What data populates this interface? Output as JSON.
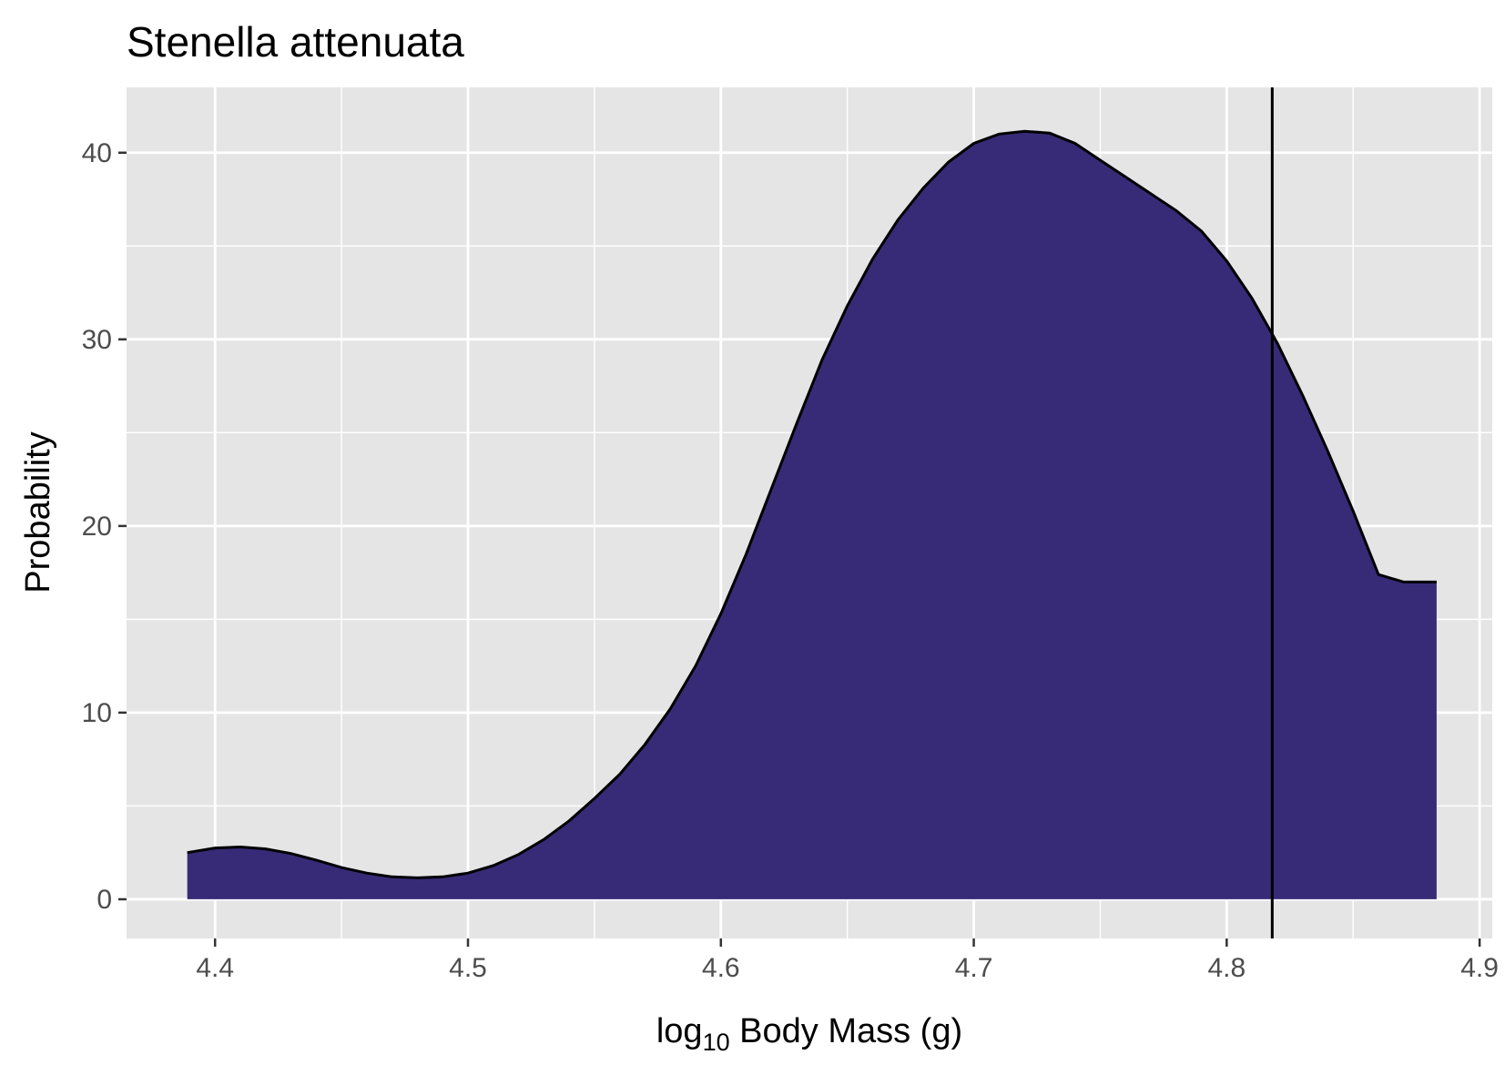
{
  "chart_data": {
    "type": "area",
    "title": "Stenella attenuata",
    "xlabel_prefix": "log",
    "xlabel_subscript": "10",
    "xlabel_suffix": " Body Mass (g)",
    "ylabel": "Probability",
    "xlim": [
      4.365,
      4.905
    ],
    "ylim": [
      -2.1,
      43.5
    ],
    "x_ticks": [
      4.4,
      4.5,
      4.6,
      4.7,
      4.8,
      4.9
    ],
    "x_tick_labels": [
      "4.4",
      "4.5",
      "4.6",
      "4.7",
      "4.8",
      "4.9"
    ],
    "y_ticks": [
      0,
      10,
      20,
      30,
      40
    ],
    "y_tick_labels": [
      "0",
      "10",
      "20",
      "30",
      "40"
    ],
    "grid": true,
    "series": [
      {
        "name": "density",
        "fill": "#372b77",
        "x": [
          4.389,
          4.4,
          4.41,
          4.42,
          4.43,
          4.44,
          4.45,
          4.46,
          4.47,
          4.48,
          4.49,
          4.5,
          4.51,
          4.52,
          4.53,
          4.54,
          4.55,
          4.56,
          4.57,
          4.58,
          4.59,
          4.6,
          4.61,
          4.62,
          4.63,
          4.64,
          4.65,
          4.66,
          4.67,
          4.68,
          4.69,
          4.7,
          4.71,
          4.72,
          4.73,
          4.74,
          4.75,
          4.76,
          4.77,
          4.78,
          4.79,
          4.8,
          4.81,
          4.82,
          4.83,
          4.84,
          4.85,
          4.86,
          4.87,
          4.883
        ],
        "y": [
          2.5,
          2.75,
          2.8,
          2.7,
          2.45,
          2.1,
          1.7,
          1.4,
          1.2,
          1.15,
          1.2,
          1.4,
          1.8,
          2.4,
          3.2,
          4.2,
          5.4,
          6.7,
          8.3,
          10.2,
          12.5,
          15.3,
          18.5,
          22.0,
          25.5,
          28.9,
          31.8,
          34.3,
          36.4,
          38.1,
          39.5,
          40.5,
          41.0,
          41.15,
          41.05,
          40.5,
          39.6,
          38.7,
          37.8,
          36.9,
          35.8,
          34.2,
          32.2,
          29.8,
          27.0,
          24.0,
          20.8,
          17.4,
          17.0,
          17.0
        ]
      }
    ],
    "vline_x": 4.818
  }
}
